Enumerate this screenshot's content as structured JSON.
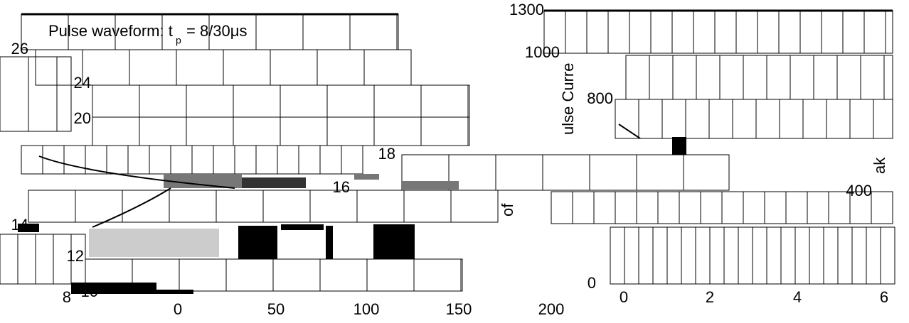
{
  "left_panel": {
    "title": "Pulse waveform: t",
    "title_sub": "p",
    "title_rest": "= 8/30μs",
    "y_ticks": [
      "26",
      "24",
      "20",
      "18",
      "16",
      "14",
      "12",
      "10",
      "8"
    ],
    "x_ticks": [
      "0",
      "50",
      "100",
      "150",
      "200"
    ]
  },
  "right_panel": {
    "y_ticks": [
      "1300",
      "1000",
      "800",
      "400",
      "0"
    ],
    "x_ticks": [
      "0",
      "2",
      "4",
      "6"
    ],
    "y_label_fragments": [
      "ulse Curre",
      "ak",
      "of"
    ]
  }
}
